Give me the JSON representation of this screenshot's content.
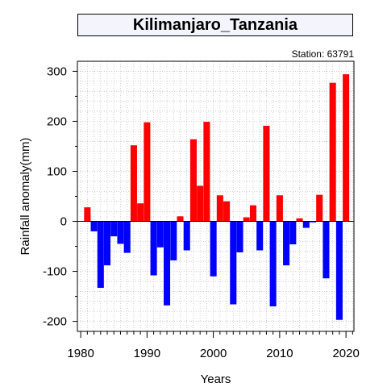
{
  "chart_data": {
    "type": "bar",
    "title": "Kilimanjaro_Tanzania",
    "subtitle": "Station: 63791",
    "xlabel": "Years",
    "ylabel": "Rainfall anomaly(mm)",
    "xlim": [
      1979.5,
      2021.2
    ],
    "ylim": [
      -220,
      320
    ],
    "x_ticks": [
      1980,
      1990,
      2000,
      2010,
      2020
    ],
    "y_ticks": [
      300,
      200,
      100,
      0,
      -100,
      -200
    ],
    "grid": true,
    "positive_color": "#ff0000",
    "negative_color": "#0000ff",
    "x": [
      1981,
      1982,
      1983,
      1984,
      1985,
      1986,
      1987,
      1988,
      1989,
      1990,
      1991,
      1992,
      1993,
      1994,
      1995,
      1996,
      1997,
      1998,
      1999,
      2000,
      2001,
      2002,
      2003,
      2004,
      2005,
      2006,
      2007,
      2008,
      2009,
      2010,
      2011,
      2012,
      2013,
      2014,
      2015,
      2016,
      2017,
      2018,
      2019,
      2020
    ],
    "values": [
      28,
      -20,
      -133,
      -88,
      -30,
      -45,
      -63,
      152,
      36,
      198,
      -108,
      -52,
      -168,
      -78,
      10,
      -58,
      164,
      71,
      199,
      -110,
      52,
      40,
      -166,
      -62,
      8,
      32,
      -58,
      191,
      -170,
      52,
      -88,
      -46,
      6,
      -13,
      -2,
      53,
      -114,
      277,
      -197,
      294
    ]
  }
}
